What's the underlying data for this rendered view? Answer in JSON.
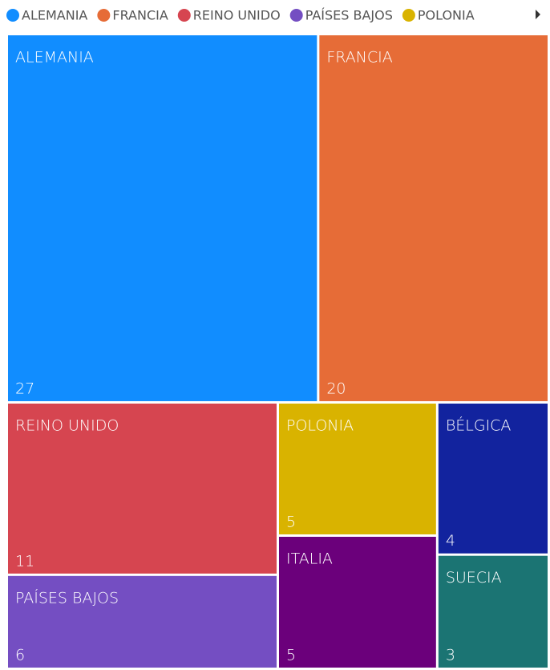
{
  "chart_data": {
    "type": "treemap",
    "categories": [
      "ALEMANIA",
      "FRANCIA",
      "REINO UNIDO",
      "PAÍSES BAJOS",
      "POLONIA",
      "ITALIA",
      "BÉLGICA",
      "SUECIA"
    ],
    "values": [
      27,
      20,
      11,
      6,
      5,
      5,
      4,
      3
    ],
    "colors": [
      "#118dff",
      "#e66c37",
      "#d64550",
      "#744ec2",
      "#d9b300",
      "#6b007b",
      "#12239e",
      "#1b7473"
    ],
    "legend": "top-left"
  }
}
